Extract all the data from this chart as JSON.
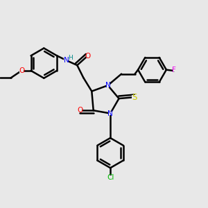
{
  "bg_color": "#e8e8e8",
  "bond_color": "#000000",
  "bond_width": 1.8,
  "figsize": [
    3.0,
    3.0
  ],
  "dpi": 100,
  "atom_colors": {
    "O": "#ff0000",
    "N": "#0000ff",
    "S": "#cccc00",
    "Cl": "#00bb00",
    "F": "#ee00ee",
    "H": "#008888",
    "C": "#000000"
  }
}
